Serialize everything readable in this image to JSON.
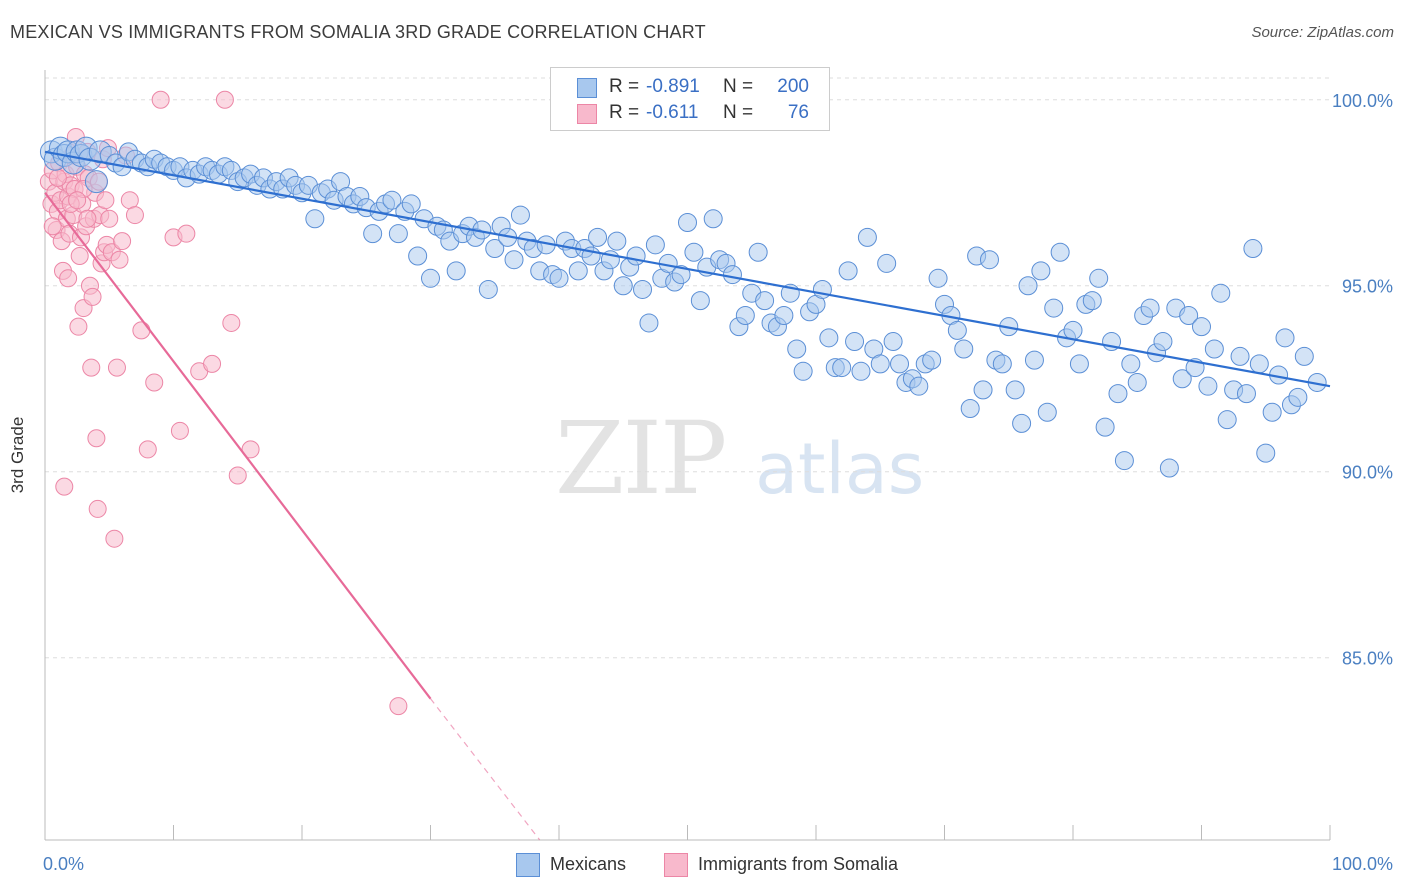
{
  "title": "MEXICAN VS IMMIGRANTS FROM SOMALIA 3RD GRADE CORRELATION CHART",
  "source": "Source: ZipAtlas.com",
  "watermark": {
    "zip": "ZIP",
    "atlas": "atlas"
  },
  "legend": {
    "rows": [
      {
        "r_label": "R =",
        "r_value": "-0.891",
        "n_label": "N =",
        "n_value": "200"
      },
      {
        "r_label": "R =",
        "r_value": "-0.611",
        "n_label": "N =",
        "n_value": "76"
      }
    ]
  },
  "bottom_legend": [
    "Mexicans",
    "Immigrants from Somalia"
  ],
  "colors": {
    "mexicans_fill": "#a8c8ee",
    "mexicans_stroke": "#5b8fd6",
    "mexicans_line": "#2e6fd0",
    "somalia_fill": "#f8b9cc",
    "somalia_stroke": "#ec86a6",
    "somalia_line": "#e76a98",
    "grid": "#dddddd",
    "tick_text": "#4a7fc1"
  },
  "chart_data": {
    "type": "scatter",
    "title": "MEXICAN VS IMMIGRANTS FROM SOMALIA 3RD GRADE CORRELATION CHART",
    "xlabel": "",
    "ylabel": "3rd Grade",
    "xlim": [
      0,
      100
    ],
    "ylim": [
      80.1,
      100.8
    ],
    "x_tick_labels": [
      "0.0%",
      "100.0%"
    ],
    "y_ticks": [
      85,
      90,
      95,
      100
    ],
    "y_tick_labels": [
      "85.0%",
      "90.0%",
      "95.0%",
      "100.0%"
    ],
    "grid": true,
    "legend_position": "bottom",
    "series": [
      {
        "name": "Mexicans",
        "r": -0.891,
        "n": 200,
        "trend": {
          "x": [
            0,
            100
          ],
          "y": [
            98.6,
            92.3
          ]
        },
        "points": [
          [
            0.5,
            98.6
          ],
          [
            0.8,
            98.4
          ],
          [
            1.2,
            98.7
          ],
          [
            1.5,
            98.5
          ],
          [
            1.8,
            98.6
          ],
          [
            2.2,
            98.3
          ],
          [
            2.5,
            98.6
          ],
          [
            2.8,
            98.5
          ],
          [
            3.2,
            98.7
          ],
          [
            3.5,
            98.4
          ],
          [
            4.0,
            97.8
          ],
          [
            4.3,
            98.6
          ],
          [
            5.0,
            98.5
          ],
          [
            5.5,
            98.3
          ],
          [
            6.0,
            98.2
          ],
          [
            6.5,
            98.6
          ],
          [
            7.0,
            98.4
          ],
          [
            7.5,
            98.3
          ],
          [
            8.0,
            98.2
          ],
          [
            8.5,
            98.4
          ],
          [
            9.0,
            98.3
          ],
          [
            9.5,
            98.2
          ],
          [
            10.0,
            98.1
          ],
          [
            10.5,
            98.2
          ],
          [
            11.0,
            97.9
          ],
          [
            11.5,
            98.1
          ],
          [
            12.0,
            98.0
          ],
          [
            12.5,
            98.2
          ],
          [
            13.0,
            98.1
          ],
          [
            13.5,
            98.0
          ],
          [
            14.0,
            98.2
          ],
          [
            14.5,
            98.1
          ],
          [
            15.0,
            97.8
          ],
          [
            15.5,
            97.9
          ],
          [
            16.0,
            98.0
          ],
          [
            16.5,
            97.7
          ],
          [
            17.0,
            97.9
          ],
          [
            17.5,
            97.6
          ],
          [
            18.0,
            97.8
          ],
          [
            18.5,
            97.6
          ],
          [
            19.0,
            97.9
          ],
          [
            19.5,
            97.7
          ],
          [
            20.0,
            97.5
          ],
          [
            20.5,
            97.7
          ],
          [
            21.0,
            96.8
          ],
          [
            21.5,
            97.5
          ],
          [
            22.0,
            97.6
          ],
          [
            22.5,
            97.3
          ],
          [
            23.0,
            97.8
          ],
          [
            23.5,
            97.4
          ],
          [
            24.0,
            97.2
          ],
          [
            24.5,
            97.4
          ],
          [
            25.0,
            97.1
          ],
          [
            25.5,
            96.4
          ],
          [
            26.0,
            97.0
          ],
          [
            26.5,
            97.2
          ],
          [
            27.0,
            97.3
          ],
          [
            27.5,
            96.4
          ],
          [
            28.0,
            97.0
          ],
          [
            28.5,
            97.2
          ],
          [
            29.0,
            95.8
          ],
          [
            29.5,
            96.8
          ],
          [
            30.0,
            95.2
          ],
          [
            30.5,
            96.6
          ],
          [
            31.0,
            96.5
          ],
          [
            31.5,
            96.2
          ],
          [
            32.0,
            95.4
          ],
          [
            32.5,
            96.4
          ],
          [
            33.0,
            96.6
          ],
          [
            33.5,
            96.3
          ],
          [
            34.0,
            96.5
          ],
          [
            34.5,
            94.9
          ],
          [
            35.0,
            96.0
          ],
          [
            35.5,
            96.6
          ],
          [
            36.0,
            96.3
          ],
          [
            36.5,
            95.7
          ],
          [
            37.0,
            96.9
          ],
          [
            37.5,
            96.2
          ],
          [
            38.0,
            96.0
          ],
          [
            38.5,
            95.4
          ],
          [
            39.0,
            96.1
          ],
          [
            39.5,
            95.3
          ],
          [
            40.0,
            95.2
          ],
          [
            40.5,
            96.2
          ],
          [
            41.0,
            96.0
          ],
          [
            41.5,
            95.4
          ],
          [
            42.0,
            96.0
          ],
          [
            42.5,
            95.8
          ],
          [
            43.0,
            96.3
          ],
          [
            43.5,
            95.4
          ],
          [
            44.0,
            95.7
          ],
          [
            44.5,
            96.2
          ],
          [
            45.0,
            95.0
          ],
          [
            45.5,
            95.5
          ],
          [
            46.0,
            95.8
          ],
          [
            46.5,
            94.9
          ],
          [
            47.0,
            94.0
          ],
          [
            47.5,
            96.1
          ],
          [
            48.0,
            95.2
          ],
          [
            48.5,
            95.6
          ],
          [
            49.0,
            95.1
          ],
          [
            49.5,
            95.3
          ],
          [
            50.0,
            96.7
          ],
          [
            50.5,
            95.9
          ],
          [
            51.0,
            94.6
          ],
          [
            51.5,
            95.5
          ],
          [
            52.0,
            96.8
          ],
          [
            52.5,
            95.7
          ],
          [
            53.0,
            95.6
          ],
          [
            53.5,
            95.3
          ],
          [
            54.0,
            93.9
          ],
          [
            54.5,
            94.2
          ],
          [
            55.0,
            94.8
          ],
          [
            55.5,
            95.9
          ],
          [
            56.0,
            94.6
          ],
          [
            56.5,
            94.0
          ],
          [
            57.0,
            93.9
          ],
          [
            57.5,
            94.2
          ],
          [
            58.0,
            94.8
          ],
          [
            58.5,
            93.3
          ],
          [
            59.0,
            92.7
          ],
          [
            59.5,
            94.3
          ],
          [
            60.0,
            94.5
          ],
          [
            60.5,
            94.9
          ],
          [
            61.0,
            93.6
          ],
          [
            61.5,
            92.8
          ],
          [
            62.0,
            92.8
          ],
          [
            62.5,
            95.4
          ],
          [
            63.0,
            93.5
          ],
          [
            63.5,
            92.7
          ],
          [
            64.0,
            96.3
          ],
          [
            64.5,
            93.3
          ],
          [
            65.0,
            92.9
          ],
          [
            65.5,
            95.6
          ],
          [
            66.0,
            93.5
          ],
          [
            66.5,
            92.9
          ],
          [
            67.0,
            92.4
          ],
          [
            67.5,
            92.5
          ],
          [
            68.0,
            92.3
          ],
          [
            68.5,
            92.9
          ],
          [
            69.0,
            93.0
          ],
          [
            69.5,
            95.2
          ],
          [
            70.0,
            94.5
          ],
          [
            70.5,
            94.2
          ],
          [
            71.0,
            93.8
          ],
          [
            71.5,
            93.3
          ],
          [
            72.0,
            91.7
          ],
          [
            72.5,
            95.8
          ],
          [
            73.0,
            92.2
          ],
          [
            73.5,
            95.7
          ],
          [
            74.0,
            93.0
          ],
          [
            74.5,
            92.9
          ],
          [
            75.0,
            93.9
          ],
          [
            75.5,
            92.2
          ],
          [
            76.0,
            91.3
          ],
          [
            76.5,
            95.0
          ],
          [
            77.0,
            93.0
          ],
          [
            77.5,
            95.4
          ],
          [
            78.0,
            91.6
          ],
          [
            78.5,
            94.4
          ],
          [
            79.0,
            95.9
          ],
          [
            79.5,
            93.6
          ],
          [
            80.0,
            93.8
          ],
          [
            80.5,
            92.9
          ],
          [
            81.0,
            94.5
          ],
          [
            81.5,
            94.6
          ],
          [
            82.0,
            95.2
          ],
          [
            82.5,
            91.2
          ],
          [
            83.0,
            93.5
          ],
          [
            83.5,
            92.1
          ],
          [
            84.0,
            90.3
          ],
          [
            84.5,
            92.9
          ],
          [
            85.0,
            92.4
          ],
          [
            85.5,
            94.2
          ],
          [
            86.0,
            94.4
          ],
          [
            86.5,
            93.2
          ],
          [
            87.0,
            93.5
          ],
          [
            87.5,
            90.1
          ],
          [
            88.0,
            94.4
          ],
          [
            88.5,
            92.5
          ],
          [
            89.0,
            94.2
          ],
          [
            89.5,
            92.8
          ],
          [
            90.0,
            93.9
          ],
          [
            90.5,
            92.3
          ],
          [
            91.0,
            93.3
          ],
          [
            91.5,
            94.8
          ],
          [
            92.0,
            91.4
          ],
          [
            92.5,
            92.2
          ],
          [
            93.0,
            93.1
          ],
          [
            93.5,
            92.1
          ],
          [
            94.0,
            96.0
          ],
          [
            94.5,
            92.9
          ],
          [
            95.0,
            90.5
          ],
          [
            95.5,
            91.6
          ],
          [
            96.0,
            92.6
          ],
          [
            96.5,
            93.6
          ],
          [
            97.0,
            91.8
          ],
          [
            97.5,
            92.0
          ],
          [
            98.0,
            93.1
          ],
          [
            99.0,
            92.4
          ]
        ]
      },
      {
        "name": "Immigrants from Somalia",
        "r": -0.611,
        "n": 76,
        "trend": {
          "x": [
            0,
            30
          ],
          "y": [
            97.5,
            83.9
          ]
        },
        "trend_dashed": {
          "x": [
            30,
            38.5
          ],
          "y": [
            83.9,
            80.1
          ]
        },
        "points": [
          [
            0.3,
            97.8
          ],
          [
            0.5,
            97.2
          ],
          [
            0.6,
            98.1
          ],
          [
            0.8,
            97.5
          ],
          [
            0.9,
            96.5
          ],
          [
            1.0,
            97.0
          ],
          [
            1.1,
            98.3
          ],
          [
            1.2,
            97.3
          ],
          [
            1.3,
            96.2
          ],
          [
            1.4,
            95.4
          ],
          [
            1.5,
            97.8
          ],
          [
            1.6,
            98.0
          ],
          [
            1.7,
            96.8
          ],
          [
            1.8,
            97.4
          ],
          [
            1.9,
            96.4
          ],
          [
            2.0,
            97.7
          ],
          [
            2.1,
            98.5
          ],
          [
            2.2,
            96.9
          ],
          [
            2.3,
            97.6
          ],
          [
            2.4,
            99.0
          ],
          [
            2.5,
            98.2
          ],
          [
            2.6,
            93.9
          ],
          [
            2.7,
            95.8
          ],
          [
            2.8,
            96.3
          ],
          [
            2.9,
            97.2
          ],
          [
            3.0,
            94.4
          ],
          [
            3.1,
            98.0
          ],
          [
            3.2,
            96.6
          ],
          [
            3.3,
            98.6
          ],
          [
            3.4,
            97.9
          ],
          [
            3.5,
            95.0
          ],
          [
            3.6,
            92.8
          ],
          [
            3.7,
            94.7
          ],
          [
            3.8,
            96.8
          ],
          [
            3.9,
            97.5
          ],
          [
            4.0,
            90.9
          ],
          [
            4.1,
            89.0
          ],
          [
            4.2,
            97.8
          ],
          [
            4.3,
            96.9
          ],
          [
            4.4,
            95.6
          ],
          [
            4.5,
            98.4
          ],
          [
            4.6,
            95.9
          ],
          [
            4.7,
            97.3
          ],
          [
            4.8,
            96.1
          ],
          [
            4.9,
            98.7
          ],
          [
            5.0,
            96.8
          ],
          [
            5.2,
            95.9
          ],
          [
            5.4,
            88.2
          ],
          [
            5.6,
            92.8
          ],
          [
            5.8,
            95.7
          ],
          [
            6.0,
            96.2
          ],
          [
            6.3,
            98.5
          ],
          [
            6.6,
            97.3
          ],
          [
            7.0,
            96.9
          ],
          [
            7.5,
            93.8
          ],
          [
            8.0,
            90.6
          ],
          [
            8.5,
            92.4
          ],
          [
            9.0,
            100.0
          ],
          [
            10.0,
            96.3
          ],
          [
            10.5,
            91.1
          ],
          [
            11.0,
            96.4
          ],
          [
            12.0,
            92.7
          ],
          [
            13.0,
            92.9
          ],
          [
            14.0,
            100.0
          ],
          [
            14.5,
            94.0
          ],
          [
            15.0,
            89.9
          ],
          [
            16.0,
            90.6
          ],
          [
            2.0,
            97.2
          ],
          [
            1.0,
            97.9
          ],
          [
            0.6,
            96.6
          ],
          [
            3.0,
            97.6
          ],
          [
            1.8,
            95.2
          ],
          [
            27.5,
            83.7
          ],
          [
            3.3,
            96.8
          ],
          [
            2.5,
            97.3
          ],
          [
            1.5,
            89.6
          ]
        ]
      }
    ]
  }
}
